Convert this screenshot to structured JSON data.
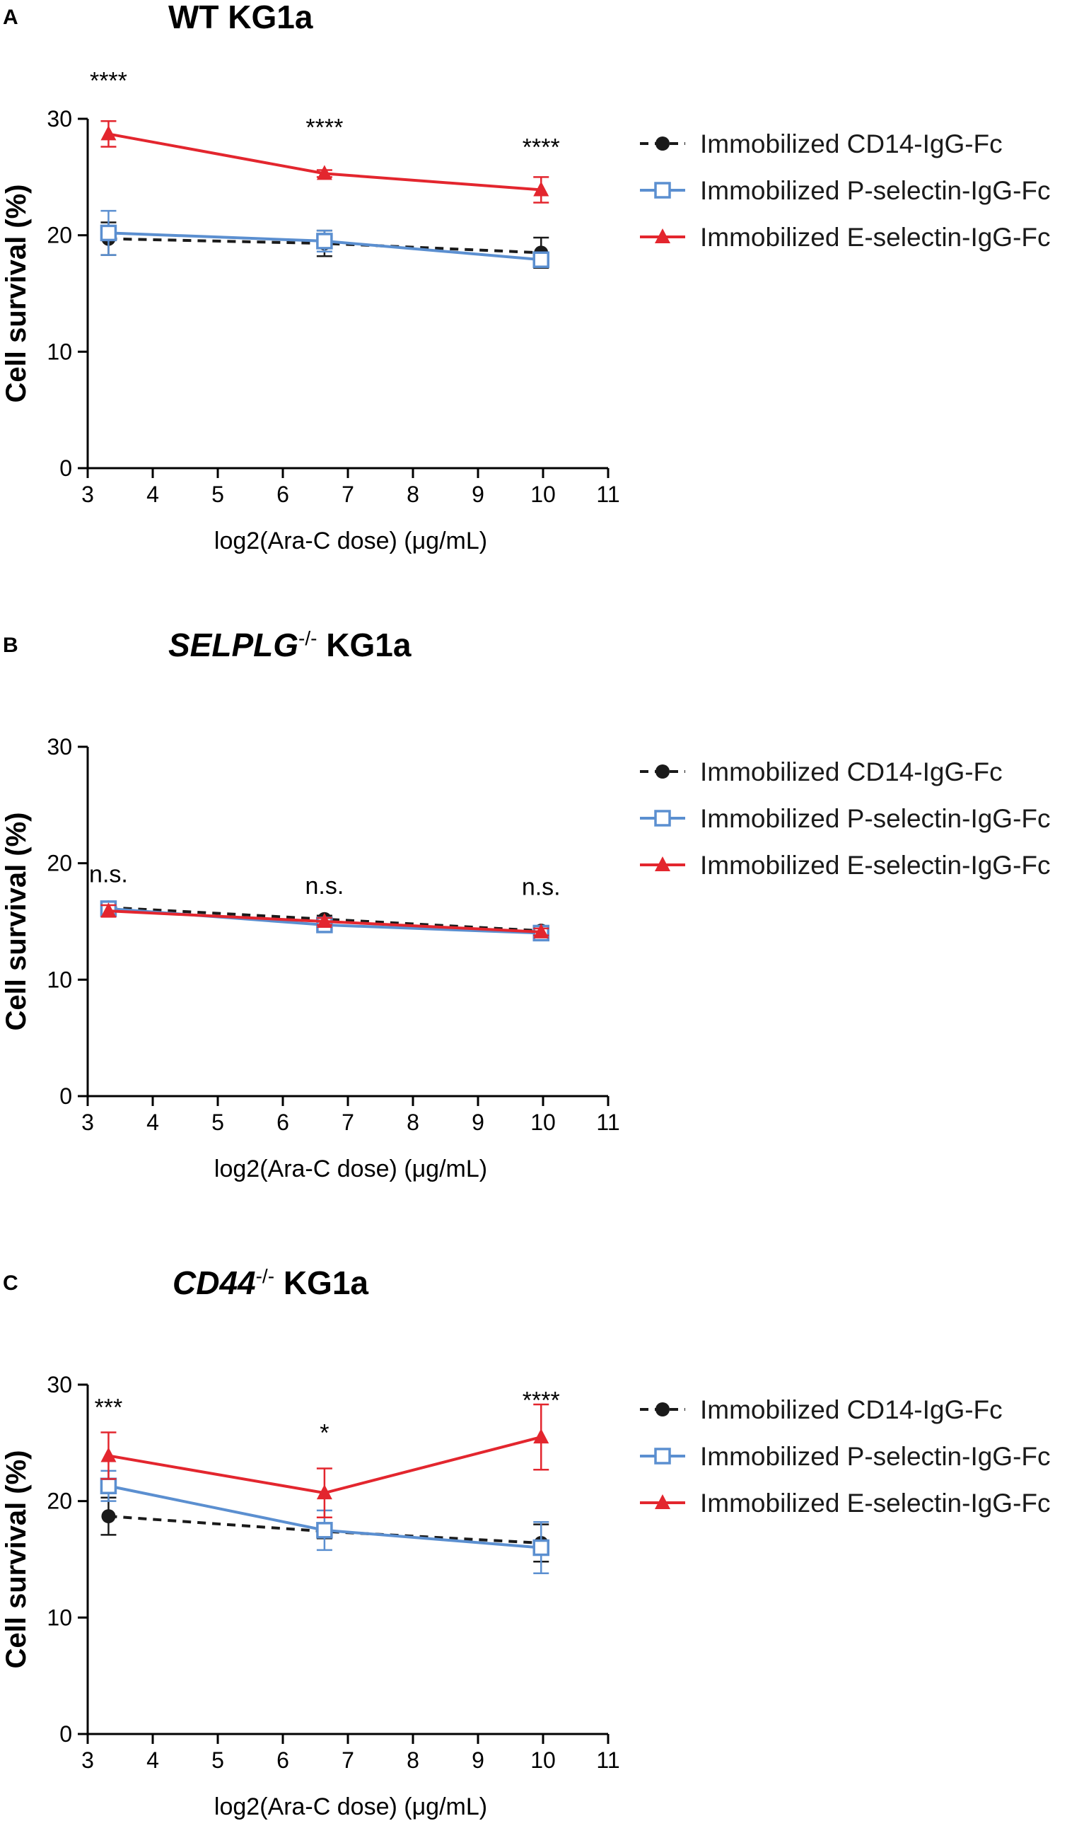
{
  "chart_data": [
    {
      "type": "line",
      "panel": "A",
      "title": "WT KG1a",
      "title_italic_part": "",
      "title_superscript": "",
      "xlabel": "log2(Ara-C dose) (μg/mL)",
      "ylabel": "Cell survival (%)",
      "xlim": [
        3,
        11
      ],
      "ylim": [
        0,
        30
      ],
      "xticks": [
        3,
        4,
        5,
        6,
        7,
        8,
        9,
        10,
        11
      ],
      "yticks": [
        0,
        10,
        20,
        30
      ],
      "x": [
        3.32,
        6.64,
        9.97
      ],
      "series": [
        {
          "name": "Immobilized CD14-IgG-Fc",
          "color": "#1a1a1a",
          "marker": "circle",
          "dashed": true,
          "values": [
            19.7,
            19.3,
            18.5
          ],
          "errors": [
            1.4,
            1.1,
            1.3
          ]
        },
        {
          "name": "Immobilized P-selectin-IgG-Fc",
          "color": "#5b8fd0",
          "marker": "square-open",
          "dashed": false,
          "values": [
            20.2,
            19.5,
            17.9
          ],
          "errors": [
            1.9,
            0.9,
            0.6
          ]
        },
        {
          "name": "Immobilized E-selectin-IgG-Fc",
          "color": "#e3262e",
          "marker": "triangle",
          "dashed": false,
          "values": [
            28.7,
            25.3,
            23.9
          ],
          "errors": [
            1.1,
            0.3,
            1.1
          ]
        }
      ],
      "annotations": [
        {
          "text": "****",
          "x": 3.32,
          "y": 33.3
        },
        {
          "text": "****",
          "x": 6.64,
          "y": 29.3
        },
        {
          "text": "****",
          "x": 9.97,
          "y": 27.6
        }
      ]
    },
    {
      "type": "line",
      "panel": "B",
      "title": " KG1a",
      "title_italic_part": "SELPLG",
      "title_superscript": "-/-",
      "xlabel": "log2(Ara-C dose) (μg/mL)",
      "ylabel": "Cell survival (%)",
      "xlim": [
        3,
        11
      ],
      "ylim": [
        0,
        30
      ],
      "xticks": [
        3,
        4,
        5,
        6,
        7,
        8,
        9,
        10,
        11
      ],
      "yticks": [
        0,
        10,
        20,
        30
      ],
      "x": [
        3.32,
        6.64,
        9.97
      ],
      "series": [
        {
          "name": "Immobilized CD14-IgG-Fc",
          "color": "#1a1a1a",
          "marker": "circle",
          "dashed": true,
          "values": [
            16.2,
            15.2,
            14.2
          ],
          "errors": [
            0.3,
            0.3,
            0.3
          ]
        },
        {
          "name": "Immobilized P-selectin-IgG-Fc",
          "color": "#5b8fd0",
          "marker": "square-open",
          "dashed": false,
          "values": [
            16.1,
            14.7,
            14.0
          ],
          "errors": [
            0.3,
            0.3,
            0.3
          ]
        },
        {
          "name": "Immobilized E-selectin-IgG-Fc",
          "color": "#e3262e",
          "marker": "triangle",
          "dashed": false,
          "values": [
            15.9,
            15.0,
            14.1
          ],
          "errors": [
            0.5,
            0.3,
            0.3
          ]
        }
      ],
      "annotations": [
        {
          "text": "n.s.",
          "x": 3.32,
          "y": 19.1
        },
        {
          "text": "n.s.",
          "x": 6.64,
          "y": 18.1
        },
        {
          "text": "n.s.",
          "x": 9.97,
          "y": 18.0
        }
      ]
    },
    {
      "type": "line",
      "panel": "C",
      "title": " KG1a",
      "title_italic_part": "CD44",
      "title_superscript": "-/-",
      "xlabel": "log2(Ara-C dose) (μg/mL)",
      "ylabel": "Cell survival (%)",
      "xlim": [
        3,
        11
      ],
      "ylim": [
        0,
        30
      ],
      "xticks": [
        3,
        4,
        5,
        6,
        7,
        8,
        9,
        10,
        11
      ],
      "yticks": [
        0,
        10,
        20,
        30
      ],
      "x": [
        3.32,
        6.64,
        9.97
      ],
      "series": [
        {
          "name": "Immobilized CD14-IgG-Fc",
          "color": "#1a1a1a",
          "marker": "circle",
          "dashed": true,
          "values": [
            18.7,
            17.4,
            16.4
          ],
          "errors": [
            1.6,
            0.6,
            1.6
          ]
        },
        {
          "name": "Immobilized P-selectin-IgG-Fc",
          "color": "#5b8fd0",
          "marker": "square-open",
          "dashed": false,
          "values": [
            21.3,
            17.5,
            16.0
          ],
          "errors": [
            1.3,
            1.7,
            2.2
          ]
        },
        {
          "name": "Immobilized E-selectin-IgG-Fc",
          "color": "#e3262e",
          "marker": "triangle",
          "dashed": false,
          "values": [
            23.9,
            20.7,
            25.5
          ],
          "errors": [
            2.0,
            2.1,
            2.8
          ]
        }
      ],
      "annotations": [
        {
          "text": "***",
          "x": 3.32,
          "y": 28.1
        },
        {
          "text": "*",
          "x": 6.64,
          "y": 25.9
        },
        {
          "text": "****",
          "x": 9.97,
          "y": 28.7
        }
      ]
    }
  ]
}
